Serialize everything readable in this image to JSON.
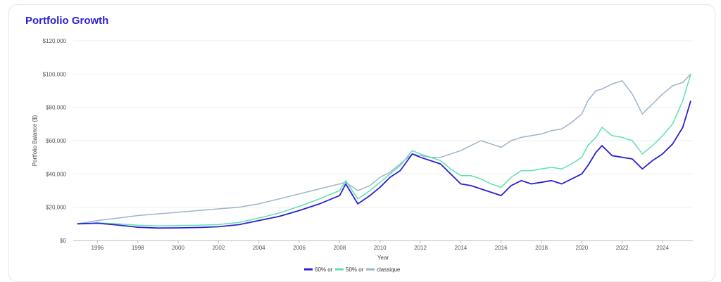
{
  "header": {
    "title": "Portfolio Growth"
  },
  "chart_data": {
    "type": "line",
    "title": "Portfolio Growth",
    "xlabel": "Year",
    "ylabel": "Portfolio Balance ($)",
    "xlim": [
      1994.8,
      2025.5
    ],
    "ylim": [
      0,
      120000
    ],
    "y_ticks": [
      "$0",
      "$20,000",
      "$40,000",
      "$60,000",
      "$80,000",
      "$100,000",
      "$120,000"
    ],
    "y_tick_values": [
      0,
      20000,
      40000,
      60000,
      80000,
      100000,
      120000
    ],
    "x_ticks": [
      "1996",
      "1998",
      "2000",
      "2002",
      "2004",
      "2006",
      "2008",
      "2010",
      "2012",
      "2014",
      "2016",
      "2018",
      "2020",
      "2022",
      "2024"
    ],
    "x_tick_values": [
      1996,
      1998,
      2000,
      2002,
      2004,
      2006,
      2008,
      2010,
      2012,
      2014,
      2016,
      2018,
      2020,
      2022,
      2024
    ],
    "grid": "horizontal",
    "legend_position": "bottom-center",
    "series": [
      {
        "name": "60% or",
        "color": "#2a1fd6",
        "x": [
          1995.0,
          1996.0,
          1997.0,
          1998.0,
          1999.0,
          2000.0,
          2001.0,
          2002.0,
          2003.0,
          2004.0,
          2005.0,
          2006.0,
          2007.0,
          2008.0,
          2008.3,
          2008.9,
          2009.5,
          2010.0,
          2010.5,
          2011.0,
          2011.6,
          2012.0,
          2012.5,
          2013.0,
          2013.5,
          2014.0,
          2014.5,
          2015.0,
          2015.5,
          2016.0,
          2016.5,
          2017.0,
          2017.5,
          2018.0,
          2018.5,
          2019.0,
          2019.5,
          2020.0,
          2020.3,
          2020.7,
          2021.0,
          2021.5,
          2022.0,
          2022.5,
          2023.0,
          2023.5,
          2024.0,
          2024.5,
          2025.0,
          2025.4
        ],
        "values": [
          10000,
          10400,
          9300,
          8000,
          7500,
          7600,
          7800,
          8300,
          9500,
          12000,
          14500,
          18000,
          22000,
          27000,
          34000,
          22000,
          27000,
          32000,
          38000,
          42000,
          52000,
          50000,
          48000,
          46000,
          40000,
          34000,
          33000,
          31000,
          29000,
          27000,
          33000,
          36000,
          34000,
          35000,
          36000,
          34000,
          37000,
          40000,
          45000,
          53000,
          57000,
          51000,
          50000,
          49000,
          43000,
          48000,
          52000,
          58000,
          68000,
          84000
        ]
      },
      {
        "name": "50% or",
        "color": "#5fe0b0",
        "x": [
          1995.0,
          1996.0,
          1997.0,
          1998.0,
          1999.0,
          2000.0,
          2001.0,
          2002.0,
          2003.0,
          2004.0,
          2005.0,
          2006.0,
          2007.0,
          2008.0,
          2008.3,
          2008.9,
          2009.5,
          2010.0,
          2010.5,
          2011.0,
          2011.6,
          2012.0,
          2012.5,
          2013.0,
          2013.5,
          2014.0,
          2014.5,
          2015.0,
          2015.5,
          2016.0,
          2016.5,
          2017.0,
          2017.5,
          2018.0,
          2018.5,
          2019.0,
          2019.5,
          2020.0,
          2020.3,
          2020.7,
          2021.0,
          2021.5,
          2022.0,
          2022.5,
          2023.0,
          2023.5,
          2024.0,
          2024.5,
          2025.0,
          2025.4
        ],
        "values": [
          10000,
          10600,
          10000,
          9200,
          8800,
          9000,
          9200,
          9600,
          10800,
          13500,
          16500,
          20500,
          25000,
          30000,
          36000,
          25000,
          30000,
          35000,
          40000,
          45000,
          54000,
          52000,
          50000,
          48000,
          43000,
          39000,
          39000,
          37000,
          34000,
          32000,
          38000,
          42000,
          42000,
          43000,
          44000,
          43000,
          46000,
          50000,
          57000,
          62000,
          68000,
          63000,
          62000,
          60000,
          52000,
          57000,
          63000,
          70000,
          84000,
          100000
        ]
      },
      {
        "name": "classique",
        "color": "#9eb3cc",
        "x": [
          1995.0,
          1996.0,
          1997.0,
          1998.0,
          1999.0,
          2000.0,
          2001.0,
          2002.0,
          2003.0,
          2004.0,
          2005.0,
          2006.0,
          2007.0,
          2008.0,
          2008.3,
          2008.9,
          2009.5,
          2010.0,
          2010.5,
          2011.0,
          2011.6,
          2012.0,
          2012.5,
          2013.0,
          2013.5,
          2014.0,
          2014.5,
          2015.0,
          2015.5,
          2016.0,
          2016.5,
          2017.0,
          2017.5,
          2018.0,
          2018.5,
          2019.0,
          2019.5,
          2020.0,
          2020.3,
          2020.7,
          2021.0,
          2021.5,
          2022.0,
          2022.5,
          2023.0,
          2023.5,
          2024.0,
          2024.5,
          2025.0,
          2025.4
        ],
        "values": [
          10000,
          12000,
          13500,
          15000,
          16000,
          17000,
          18000,
          19000,
          20000,
          22000,
          25000,
          28000,
          31000,
          34000,
          35000,
          30000,
          33000,
          38000,
          41000,
          46000,
          52000,
          51000,
          50000,
          50000,
          52000,
          54000,
          57000,
          60000,
          58000,
          56000,
          60000,
          62000,
          63000,
          64000,
          66000,
          67000,
          71000,
          76000,
          84000,
          90000,
          91000,
          94000,
          96000,
          88000,
          76000,
          82000,
          88000,
          93000,
          95000,
          100000
        ]
      }
    ]
  }
}
